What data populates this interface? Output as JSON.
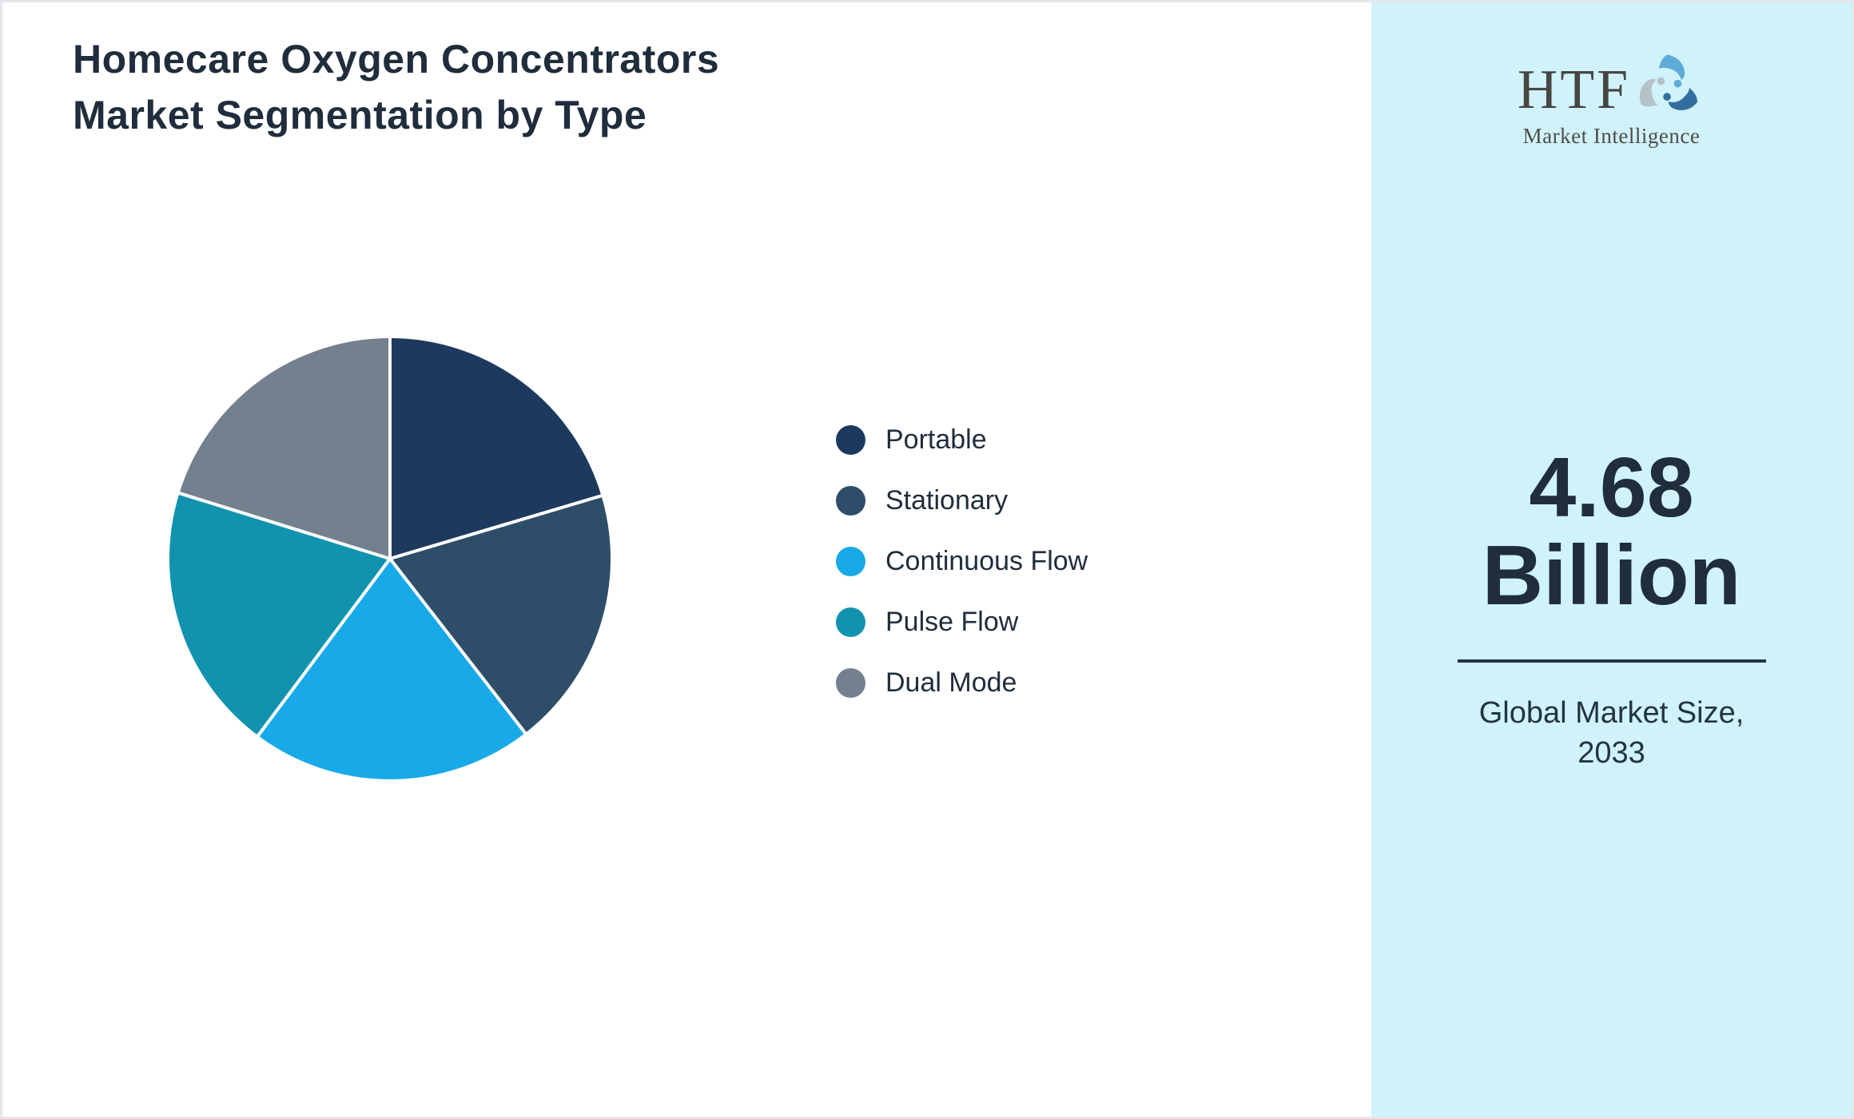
{
  "header": {
    "title_line1": "Homecare Oxygen Concentrators",
    "title_line2": "Market Segmentation by Type"
  },
  "chart_data": {
    "type": "pie",
    "title": "Homecare Oxygen Concentrators Market Segmentation by Type",
    "categories": [
      "Portable",
      "Stationary",
      "Continuous Flow",
      "Pulse Flow",
      "Dual Mode"
    ],
    "values": [
      20.4,
      19.1,
      20.7,
      19.6,
      20.2
    ],
    "values_note": "percent share estimated from slice arc angles; no data labels shown",
    "colors": [
      "#1d3a5e",
      "#2e4d68",
      "#18a9e8",
      "#1193af",
      "#73808e"
    ],
    "start_angle_deg": 0,
    "direction": "clockwise",
    "slice_border_color": "#ffffff",
    "legend_position": "right",
    "legend_entries": [
      "Portable",
      "Stationary",
      "Continuous Flow",
      "Pulse Flow",
      "Dual Mode"
    ]
  },
  "sidebar": {
    "background": "#d0f3fb",
    "logo": {
      "text": "HTF",
      "subtext": "Market Intelligence"
    },
    "market_size": {
      "value_line1": "4.68",
      "value_line2": "Billion",
      "caption_line1": "Global Market Size,",
      "caption_line2": "2033"
    }
  }
}
